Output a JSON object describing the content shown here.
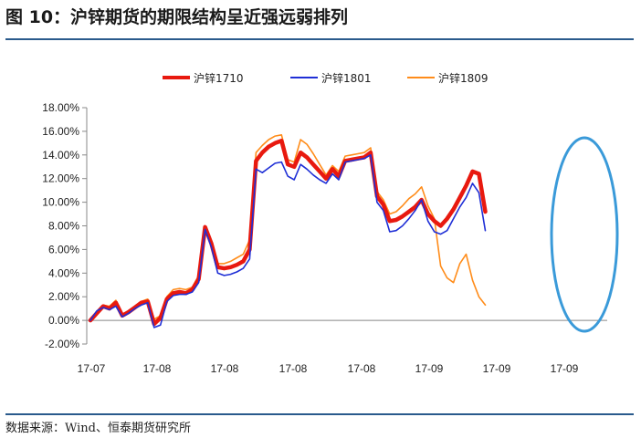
{
  "title": "图 10：沪锌期货的期限结构呈近强远弱排列",
  "source": "数据来源：Wind、恒泰期货研究所",
  "colors": {
    "rule": "#2a5a8c",
    "highlight_ellipse": "#3a9ad9"
  },
  "chart_data": {
    "type": "line",
    "title": "",
    "xlabel": "",
    "ylabel": "",
    "ylim": [
      -2,
      18
    ],
    "y_ticks": [
      "18.00%",
      "16.00%",
      "14.00%",
      "12.00%",
      "10.00%",
      "8.00%",
      "6.00%",
      "4.00%",
      "2.00%",
      "0.00%",
      "-2.00%"
    ],
    "x_ticks": [
      "17-07",
      "17-08",
      "17-08",
      "17-08",
      "17-08",
      "17-09",
      "17-09",
      "17-09"
    ],
    "legend_position": "top",
    "grid": false,
    "x": [
      0,
      1,
      2,
      3,
      4,
      5,
      6,
      7,
      8,
      9,
      10,
      11,
      12,
      13,
      14,
      15,
      16,
      17,
      18,
      19,
      20,
      21,
      22,
      23,
      24,
      25,
      26,
      27,
      28,
      29,
      30,
      31,
      32,
      33,
      34,
      35,
      36,
      37,
      38,
      39,
      40,
      41,
      42,
      43,
      44,
      45,
      46,
      47,
      48,
      49,
      50,
      51,
      52,
      53,
      54,
      55,
      56,
      57,
      58,
      59,
      60,
      61,
      62,
      63,
      64,
      65,
      66,
      67,
      68,
      69,
      70,
      71,
      72,
      73,
      74,
      75,
      76,
      77,
      78,
      79,
      80
    ],
    "series": [
      {
        "name": "沪锌1710",
        "color": "#e8190f",
        "width": 4.5,
        "values": [
          0.0,
          0.6,
          1.2,
          1.0,
          1.5,
          0.4,
          0.7,
          1.1,
          1.5,
          1.6,
          -0.3,
          0.2,
          1.8,
          2.3,
          2.4,
          2.3,
          2.6,
          3.5,
          7.9,
          6.5,
          4.5,
          4.4,
          4.5,
          4.7,
          5.0,
          6.0,
          13.5,
          14.2,
          14.7,
          15.0,
          15.2,
          13.2,
          13.0,
          14.2,
          13.8,
          13.2,
          12.6,
          12.0,
          12.8,
          12.2,
          13.5,
          13.6,
          13.7,
          13.8,
          14.2,
          10.5,
          9.8,
          8.4,
          8.5,
          8.8,
          9.2,
          9.6,
          10.2,
          9.0,
          8.4,
          8.0,
          8.6,
          9.4,
          10.4,
          11.4,
          12.6,
          12.4,
          9.2,
          null,
          null,
          null,
          null,
          null,
          null,
          null,
          null,
          null,
          null,
          null,
          null,
          null,
          null,
          null,
          null,
          null,
          null
        ]
      },
      {
        "name": "沪锌1801",
        "color": "#1f2fd6",
        "width": 1.6,
        "values": [
          0.0,
          0.8,
          1.1,
          0.9,
          1.2,
          0.3,
          0.6,
          1.0,
          1.3,
          1.5,
          -0.6,
          -0.4,
          1.6,
          2.1,
          2.2,
          2.2,
          2.4,
          3.2,
          7.7,
          6.2,
          4.0,
          3.8,
          3.9,
          4.1,
          4.4,
          5.2,
          12.8,
          12.5,
          12.9,
          13.3,
          13.4,
          12.2,
          11.9,
          13.2,
          12.8,
          12.3,
          11.9,
          11.6,
          12.4,
          11.9,
          13.4,
          13.5,
          13.6,
          13.7,
          14.0,
          10.0,
          9.3,
          7.5,
          7.6,
          8.0,
          8.6,
          9.3,
          10.2,
          8.4,
          7.5,
          7.3,
          7.6,
          8.6,
          9.6,
          10.4,
          11.6,
          10.8,
          7.6,
          null,
          null,
          null,
          null,
          null,
          null,
          null,
          null,
          null,
          null,
          null,
          null,
          null,
          null,
          null,
          null,
          null,
          null
        ]
      },
      {
        "name": "沪锌1809",
        "color": "#ff8c1a",
        "width": 1.6,
        "values": [
          0.0,
          0.7,
          1.3,
          1.2,
          1.7,
          0.5,
          0.8,
          1.2,
          1.6,
          1.8,
          0.1,
          0.4,
          2.0,
          2.6,
          2.7,
          2.6,
          2.8,
          3.8,
          7.8,
          6.6,
          4.8,
          4.8,
          5.0,
          5.3,
          5.6,
          6.8,
          14.2,
          14.8,
          15.3,
          15.6,
          15.7,
          13.6,
          13.4,
          15.3,
          14.9,
          14.1,
          13.2,
          12.3,
          13.1,
          12.6,
          13.9,
          14.0,
          14.1,
          14.2,
          14.6,
          10.9,
          10.2,
          9.0,
          9.2,
          9.7,
          10.3,
          10.7,
          11.3,
          9.7,
          8.6,
          4.6,
          3.6,
          3.2,
          4.8,
          5.6,
          3.4,
          2.0,
          1.3,
          null,
          null,
          null,
          null,
          null,
          null,
          null,
          null,
          null,
          null,
          null,
          null,
          null,
          null,
          null,
          null,
          null,
          null
        ]
      }
    ]
  }
}
